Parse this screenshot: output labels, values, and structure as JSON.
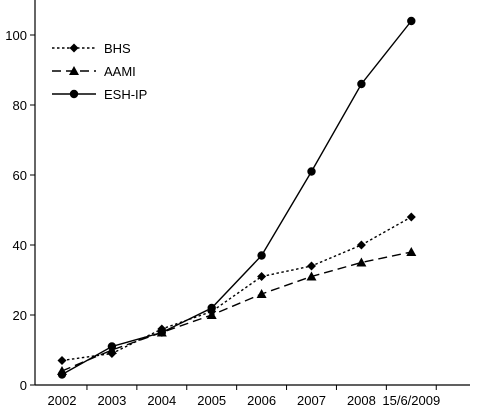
{
  "chart_data": {
    "type": "line",
    "categories": [
      "2002",
      "2003",
      "2004",
      "2005",
      "2006",
      "2007",
      "2008",
      "15/6/2009"
    ],
    "ylim": [
      0,
      110
    ],
    "yticks": [
      0,
      20,
      40,
      60,
      80,
      100
    ],
    "grid": false,
    "legend_position": "top-left",
    "series": [
      {
        "name": "BHS",
        "values": [
          7,
          9,
          16,
          21,
          31,
          34,
          40,
          48
        ],
        "marker": "diamond",
        "line_style": "dotted"
      },
      {
        "name": "AAMI",
        "values": [
          4,
          10,
          15,
          20,
          26,
          31,
          35,
          38
        ],
        "marker": "triangle",
        "line_style": "dashed"
      },
      {
        "name": "ESH-IP",
        "values": [
          3,
          11,
          15,
          22,
          37,
          61,
          86,
          104
        ],
        "marker": "circle",
        "line_style": "solid"
      }
    ]
  }
}
